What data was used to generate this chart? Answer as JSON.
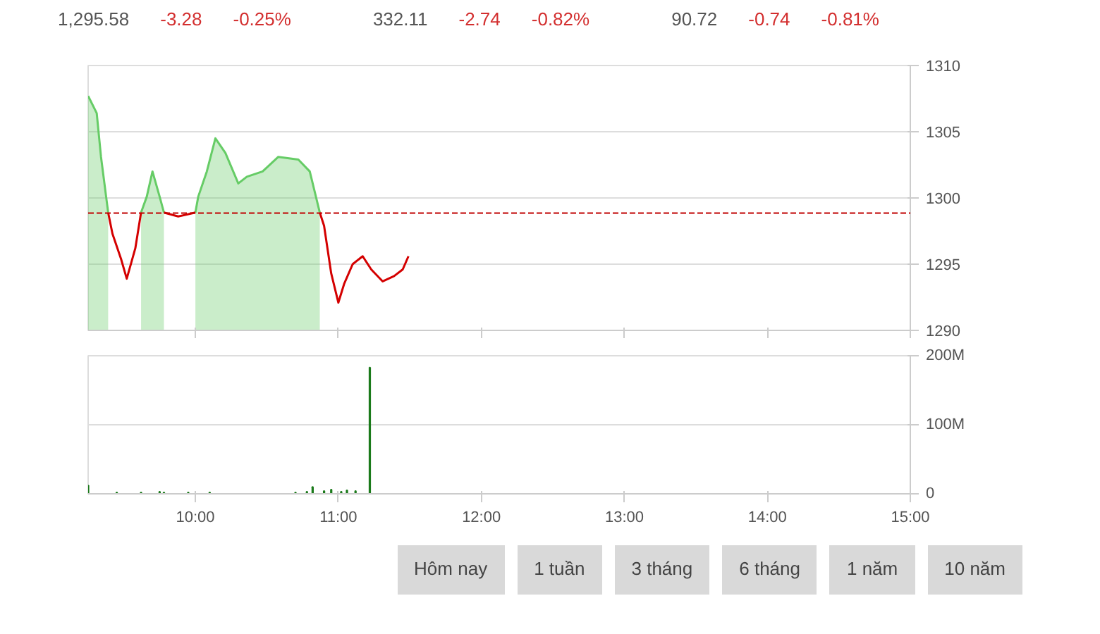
{
  "chart_data": [
    {
      "type": "line",
      "annotations": [
        "1,295.58",
        "-3.28",
        "-0.25%",
        "332.11",
        "-2.74",
        "-0.82%",
        "90.72",
        "-0.74",
        "-0.81%"
      ],
      "xlim": [
        9.25,
        15
      ],
      "ylim": [
        1290,
        1310
      ],
      "yticks": [
        1290,
        1295,
        1300,
        1305,
        1310
      ],
      "xticks": [
        {
          "value": 10,
          "label": null
        },
        {
          "value": 11,
          "label": null
        },
        {
          "value": 12,
          "label": null
        },
        {
          "value": 13,
          "label": null
        },
        {
          "value": 14,
          "label": null
        },
        {
          "value": 15,
          "label": null
        }
      ],
      "tick_labels": "y",
      "grid": "y",
      "series": [
        {
          "type": "area",
          "color": "#66cc66",
          "x": [
            9.25,
            9.31,
            9.34,
            9.39,
            9.5,
            9.62,
            9.66,
            9.7,
            9.75,
            9.78,
            9.88,
            10.0,
            10.02,
            10.08,
            10.14,
            10.21,
            10.3,
            10.36,
            10.47,
            10.58,
            10.72,
            10.8,
            10.87
          ],
          "values": [
            1307.7,
            1306.4,
            1303.1,
            1298.9,
            null,
            1298.9,
            1300.1,
            1302.0,
            1300.1,
            1298.9,
            null,
            1298.9,
            1300.1,
            1302.0,
            1304.5,
            1303.4,
            1301.1,
            1301.6,
            1302.0,
            1303.1,
            1302.9,
            1302.0,
            1298.9
          ]
        },
        {
          "type": "line",
          "color": "#d40000",
          "x": [
            9.39,
            9.42,
            9.48,
            9.52,
            9.58,
            9.62,
            9.7,
            9.78,
            9.88,
            10.0,
            10.5,
            10.87,
            10.9,
            10.95,
            11.0,
            11.04,
            11.1,
            11.17,
            11.23,
            11.31,
            11.39,
            11.45,
            11.49
          ],
          "values": [
            1298.9,
            1297.3,
            1295.4,
            1293.9,
            1296.2,
            1298.9,
            null,
            1298.9,
            1298.6,
            1298.9,
            null,
            1298.9,
            1297.9,
            1294.3,
            1292.1,
            1293.5,
            1295.0,
            1295.6,
            1294.6,
            1293.7,
            1294.1,
            1294.6,
            1295.6
          ]
        }
      ],
      "ref_lines": [
        {
          "axis": "y",
          "value": 1298.86,
          "color": "#c00000",
          "line_style": "dashed"
        }
      ]
    },
    {
      "type": "bar",
      "annotations": [
        "Hôm nay",
        "1 tuần",
        "3 tháng",
        "6 tháng",
        "1 năm",
        "10 năm"
      ],
      "xlim": [
        9.25,
        15
      ],
      "ylim": [
        0,
        200
      ],
      "yticks": [
        0,
        {
          "value": 100,
          "label": "100M"
        },
        {
          "value": 200,
          "label": "200M"
        }
      ],
      "xticks": [
        {
          "value": 10,
          "label": "10:00"
        },
        {
          "value": 11,
          "label": "11:00"
        },
        {
          "value": 12,
          "label": "12:00"
        },
        {
          "value": 13,
          "label": "13:00"
        },
        {
          "value": 14,
          "label": "14:00"
        },
        {
          "value": 15,
          "label": "15:00"
        }
      ],
      "grid": "y",
      "series": [
        {
          "color": "#1b7a1b",
          "x": [
            9.25,
            9.45,
            9.62,
            9.75,
            9.78,
            9.95,
            10.1,
            10.7,
            10.78,
            10.82,
            10.9,
            10.95,
            11.02,
            11.06,
            11.12,
            11.22
          ],
          "values": [
            12,
            2,
            2,
            3,
            2,
            2,
            2,
            2,
            3,
            10,
            4,
            6,
            3,
            5,
            4,
            183
          ]
        }
      ]
    }
  ]
}
